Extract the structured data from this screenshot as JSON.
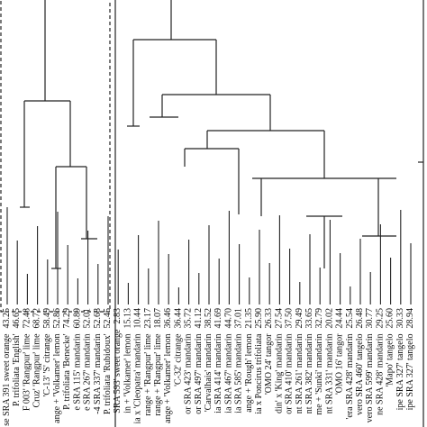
{
  "leaves": [
    {
      "label": "se SRA 391 sweet orange",
      "value": "43.25"
    },
    {
      "label": "P. trifoliata 'English'",
      "value": "46.65"
    },
    {
      "label": "F 003' 'Rangpur' lime",
      "value": "72.48"
    },
    {
      "label": "Cruz' 'Rangpur' lime",
      "value": "68.72"
    },
    {
      "label": "'C-13' 'S' citrange",
      "value": "58.49"
    },
    {
      "label": "ange + 'Volkamer' lemon",
      "value": "52.86"
    },
    {
      "label": "P. trifoliata 'Benecke'",
      "value": "74.29"
    },
    {
      "label": "e SRA 115' mandarin",
      "value": "60.89"
    },
    {
      "label": "e SRA 267' mandarin",
      "value": "52.01"
    },
    {
      "label": "-4 SRA 337' mandarin",
      "value": "52.68"
    },
    {
      "label": "P. trifoliata 'Rubidoux'",
      "value": "52.45"
    },
    {
      "label": "SRA 593' sweet orange",
      "value": "2.83"
    },
    {
      "label": "in + 'Volkamer' lemon",
      "value": "15.13"
    },
    {
      "label": "ia x 'Cleopatra' mandarin",
      "value": "10.44"
    },
    {
      "label": "range + 'Rangpur' lime",
      "value": "23.17"
    },
    {
      "label": "range + 'Rangpur' lime",
      "value": "18.07"
    },
    {
      "label": "ange + 'Volkamer' lemon",
      "value": "36.46"
    },
    {
      "label": "'C-32' citrange",
      "value": "36.44"
    },
    {
      "label": "or SRA 423' mandarin",
      "value": "35.72"
    },
    {
      "label": "or SRA 497' mandarin",
      "value": "41.12"
    },
    {
      "label": "'Carvalhais' mandarin",
      "value": "38.52"
    },
    {
      "label": "ia SRA 414' mandarin",
      "value": "41.69"
    },
    {
      "label": "ia SRA 467' mandarin",
      "value": "44.70"
    },
    {
      "label": "ia SRA 585' mandarin",
      "value": "37.01"
    },
    {
      "label": "ange + 'Rough' lemon",
      "value": "21.35"
    },
    {
      "label": "ia x Poncirus trifoliata",
      "value": "25.90"
    },
    {
      "label": "'OMO 24' tangor",
      "value": "26.33"
    },
    {
      "label": "din' x 'King' mandarin",
      "value": "27.54"
    },
    {
      "label": "or SRA 410' mandarin",
      "value": "37.50"
    },
    {
      "label": "nt SRA 261' mandarin",
      "value": "29.49"
    },
    {
      "label": "nt SRA 382' mandarin",
      "value": "33.65"
    },
    {
      "label": "me + 'Sunki' mandarin",
      "value": "32.79"
    },
    {
      "label": "nt SRA 331' mandarin",
      "value": "20.02"
    },
    {
      "label": "'OMO 16' tangor",
      "value": "24.44"
    },
    {
      "label": "'era SRA 428' mandarin",
      "value": "25.54"
    },
    {
      "label": "vero SRA 460' tangelo",
      "value": "26.48"
    },
    {
      "label": "vero SRA 599' mandarin",
      "value": "30.77"
    },
    {
      "label": "ne SRA 428' mandarin",
      "value": "29.25"
    },
    {
      "label": "'Mapo' tangelo",
      "value": "25.60"
    },
    {
      "label": "ipe SRA 327' tangelo",
      "value": "30.33"
    },
    {
      "label": "ipe SRA 327' tangelo",
      "value": "28.94"
    }
  ]
}
